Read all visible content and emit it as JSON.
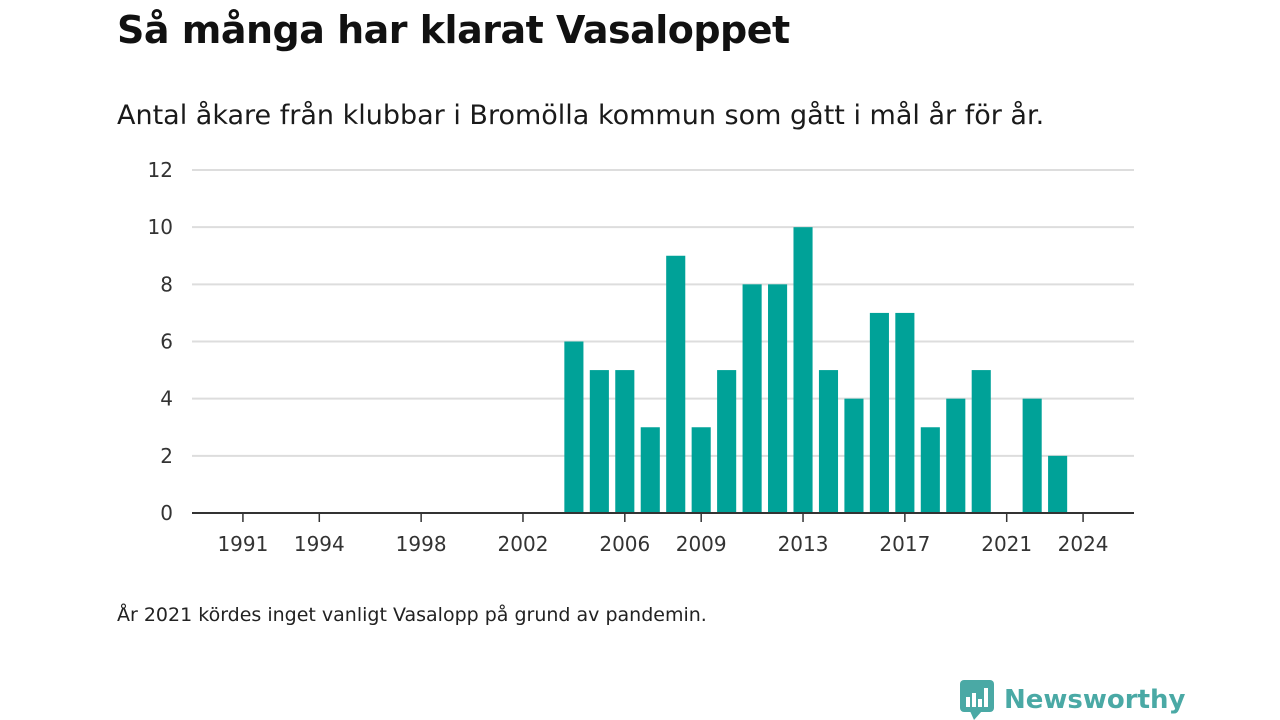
{
  "title": "Så många har klarat Vasaloppet",
  "subtitle": "Antal åkare från klubbar i Bromölla kommun som gått i mål år för år.",
  "note": "År 2021 kördes inget vanligt Vasalopp på grund av pandemin.",
  "brand": {
    "name": "Newsworthy",
    "icon": "newsworthy-logo-icon",
    "color": "#4aa9a5"
  },
  "colors": {
    "bar": "#00a298",
    "grid": "#dddddd",
    "axis": "#333333"
  },
  "chart_data": {
    "type": "bar",
    "title": "Så många har klarat Vasaloppet",
    "subtitle": "Antal åkare från klubbar i Bromölla kommun som gått i mål år för år.",
    "xlabel": "",
    "ylabel": "",
    "ylim": [
      0,
      12
    ],
    "yticks": [
      0,
      2,
      4,
      6,
      8,
      10,
      12
    ],
    "xlim": [
      1989,
      2026
    ],
    "xticks": [
      1991,
      1994,
      1998,
      2002,
      2006,
      2009,
      2013,
      2017,
      2021,
      2024
    ],
    "grid": true,
    "legend": "none",
    "categories": [
      2004,
      2005,
      2006,
      2007,
      2008,
      2009,
      2010,
      2011,
      2012,
      2013,
      2014,
      2015,
      2016,
      2017,
      2018,
      2019,
      2020,
      2021,
      2022,
      2023
    ],
    "values": [
      6,
      5,
      5,
      3,
      9,
      3,
      5,
      8,
      8,
      10,
      5,
      4,
      7,
      7,
      3,
      4,
      5,
      0,
      4,
      2
    ]
  }
}
